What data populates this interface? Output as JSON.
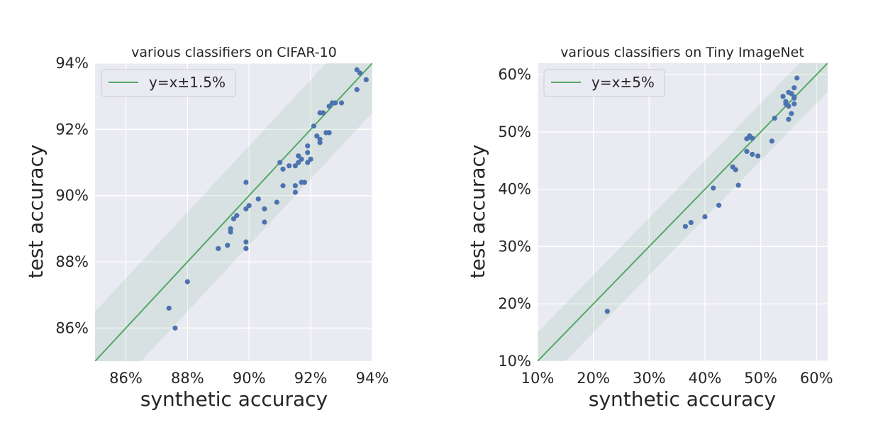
{
  "chart_data": [
    {
      "type": "scatter",
      "title": "various classifiers on CIFAR-10",
      "xlabel": "synthetic accuracy",
      "ylabel": "test accuracy",
      "xlim": [
        85,
        94
      ],
      "ylim": [
        85,
        94
      ],
      "xticks": [
        86,
        88,
        90,
        92,
        94
      ],
      "yticks": [
        86,
        88,
        90,
        92,
        94
      ],
      "tick_labels": {
        "x": [
          "86%",
          "88%",
          "90%",
          "92%",
          "94%"
        ],
        "y": [
          "86%",
          "88%",
          "90%",
          "92%",
          "94%"
        ]
      },
      "band_halfwidth": 1.5,
      "legend": {
        "label": "y=x±1.5%",
        "placement": "top-left"
      },
      "colors": {
        "points": "#4c72b0",
        "line": "#55a868",
        "band": "#55a868",
        "background": "#eaeaf2"
      },
      "points": {
        "x": [
          87.4,
          87.6,
          88.0,
          89.0,
          89.3,
          89.4,
          89.4,
          89.5,
          89.6,
          89.9,
          89.9,
          89.9,
          89.9,
          90.0,
          90.3,
          90.5,
          90.5,
          90.9,
          91.0,
          91.1,
          91.1,
          91.3,
          91.5,
          91.5,
          91.5,
          91.6,
          91.6,
          91.7,
          91.7,
          91.8,
          91.9,
          91.9,
          91.9,
          92.0,
          92.1,
          92.2,
          92.3,
          92.3,
          92.3,
          92.4,
          92.5,
          92.6,
          92.6,
          92.7,
          92.8,
          93.0,
          93.5,
          93.5,
          93.6,
          93.8
        ],
        "y": [
          86.6,
          86.0,
          87.4,
          88.4,
          88.5,
          88.9,
          89.0,
          89.3,
          89.4,
          88.6,
          88.4,
          89.6,
          90.4,
          89.7,
          89.9,
          89.6,
          89.2,
          89.8,
          91.0,
          90.8,
          90.3,
          90.9,
          90.1,
          90.3,
          90.9,
          91.0,
          91.2,
          91.1,
          90.4,
          90.4,
          91.0,
          91.3,
          91.5,
          91.1,
          92.1,
          91.8,
          92.5,
          91.7,
          91.6,
          92.5,
          91.9,
          91.9,
          92.7,
          92.8,
          92.8,
          92.8,
          93.2,
          93.8,
          93.7,
          93.5
        ]
      }
    },
    {
      "type": "scatter",
      "title": "various classifiers on Tiny ImageNet",
      "xlabel": "synthetic accuracy",
      "ylabel": "test accuracy",
      "xlim": [
        10,
        62
      ],
      "ylim": [
        10,
        62
      ],
      "xticks": [
        10,
        20,
        30,
        40,
        50,
        60
      ],
      "yticks": [
        10,
        20,
        30,
        40,
        50,
        60
      ],
      "tick_labels": {
        "x": [
          "10%",
          "20%",
          "30%",
          "40%",
          "50%",
          "60%"
        ],
        "y": [
          "10%",
          "20%",
          "30%",
          "40%",
          "50%",
          "60%"
        ]
      },
      "band_halfwidth": 5,
      "legend": {
        "label": "y=x±5%",
        "placement": "top-left"
      },
      "colors": {
        "points": "#4c72b0",
        "line": "#55a868",
        "band": "#55a868",
        "background": "#eaeaf2"
      },
      "points": {
        "x": [
          22.5,
          36.5,
          37.5,
          40.0,
          41.5,
          42.5,
          45.0,
          45.5,
          46.0,
          47.5,
          47.5,
          48.0,
          48.0,
          48.5,
          48.5,
          49.5,
          52.0,
          52.5,
          54.0,
          54.5,
          54.5,
          55.0,
          55.0,
          55.0,
          55.5,
          55.5,
          56.0,
          56.0,
          56.0,
          56.0,
          56.5
        ],
        "y": [
          18.7,
          33.5,
          34.2,
          35.2,
          40.2,
          37.2,
          43.9,
          43.4,
          40.7,
          46.6,
          48.8,
          49.1,
          49.3,
          46.1,
          48.9,
          45.8,
          48.4,
          52.4,
          56.2,
          54.9,
          55.3,
          52.2,
          54.5,
          56.9,
          53.2,
          56.7,
          55.9,
          54.9,
          56.1,
          57.7,
          59.4
        ]
      }
    }
  ]
}
